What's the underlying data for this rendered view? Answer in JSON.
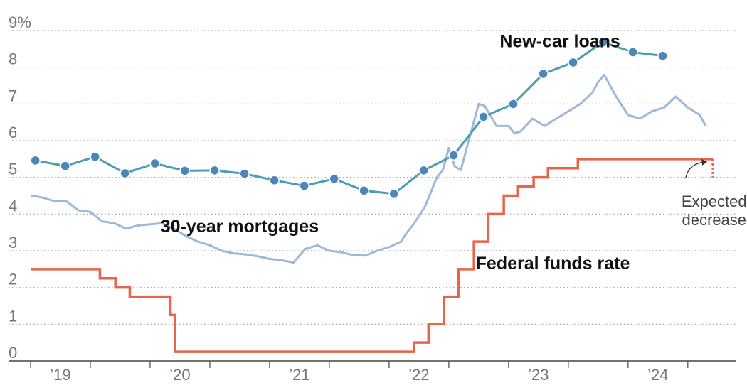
{
  "chart_data": {
    "type": "line",
    "ylim": [
      0,
      9
    ],
    "yticks": [
      0,
      1,
      2,
      3,
      4,
      5,
      6,
      7,
      8,
      9
    ],
    "ytick_labels": [
      "0",
      "1",
      "2",
      "3",
      "4",
      "5",
      "6",
      "7",
      "8",
      "9%"
    ],
    "xlim": [
      2019.0,
      2024.9
    ],
    "xticks": [
      2019.0,
      2019.5,
      2020.0,
      2020.5,
      2021.0,
      2021.5,
      2022.0,
      2022.5,
      2023.0,
      2023.5,
      2024.0,
      2024.5
    ],
    "xtick_labels": [
      {
        "x": 2019.25,
        "label": "’19"
      },
      {
        "x": 2020.25,
        "label": "’20"
      },
      {
        "x": 2021.25,
        "label": "’21"
      },
      {
        "x": 2022.25,
        "label": "’22"
      },
      {
        "x": 2023.25,
        "label": "’23"
      },
      {
        "x": 2024.25,
        "label": "’24"
      }
    ],
    "grid": "horizontal dotted",
    "series": [
      {
        "name": "New-car loans",
        "color": "#4a9db5",
        "markers": true,
        "x": [
          2019.04,
          2019.29,
          2019.54,
          2019.79,
          2020.04,
          2020.29,
          2020.54,
          2020.79,
          2021.04,
          2021.29,
          2021.54,
          2021.79,
          2022.04,
          2022.29,
          2022.54,
          2022.79,
          2023.04,
          2023.29,
          2023.54,
          2023.79,
          2024.04,
          2024.29
        ],
        "values": [
          5.46,
          5.31,
          5.56,
          5.11,
          5.38,
          5.18,
          5.19,
          5.1,
          4.92,
          4.77,
          4.96,
          4.64,
          4.55,
          5.19,
          5.6,
          6.65,
          7.0,
          7.82,
          8.13,
          8.68,
          8.41,
          8.31
        ]
      },
      {
        "name": "30-year mortgages",
        "color": "#9db8d8",
        "markers": false,
        "x": [
          2019.0,
          2019.1,
          2019.2,
          2019.3,
          2019.4,
          2019.5,
          2019.6,
          2019.7,
          2019.8,
          2019.9,
          2020.0,
          2020.1,
          2020.2,
          2020.3,
          2020.4,
          2020.5,
          2020.6,
          2020.7,
          2020.8,
          2020.9,
          2021.0,
          2021.1,
          2021.2,
          2021.3,
          2021.4,
          2021.5,
          2021.6,
          2021.7,
          2021.8,
          2021.9,
          2022.0,
          2022.1,
          2022.15,
          2022.2,
          2022.3,
          2022.4,
          2022.45,
          2022.5,
          2022.55,
          2022.6,
          2022.7,
          2022.75,
          2022.8,
          2022.9,
          2023.0,
          2023.05,
          2023.1,
          2023.2,
          2023.3,
          2023.4,
          2023.5,
          2023.6,
          2023.7,
          2023.75,
          2023.8,
          2023.85,
          2023.9,
          2024.0,
          2024.1,
          2024.2,
          2024.3,
          2024.4,
          2024.5,
          2024.6,
          2024.65
        ],
        "values": [
          4.51,
          4.45,
          4.35,
          4.35,
          4.1,
          4.06,
          3.8,
          3.75,
          3.6,
          3.69,
          3.72,
          3.75,
          3.6,
          3.4,
          3.25,
          3.15,
          3.0,
          2.93,
          2.9,
          2.85,
          2.78,
          2.74,
          2.68,
          3.05,
          3.15,
          3.0,
          2.96,
          2.88,
          2.87,
          3.0,
          3.1,
          3.25,
          3.5,
          3.7,
          4.2,
          5.0,
          5.2,
          5.8,
          5.3,
          5.2,
          6.4,
          7.0,
          6.95,
          6.4,
          6.4,
          6.2,
          6.25,
          6.6,
          6.4,
          6.6,
          6.8,
          7.0,
          7.3,
          7.6,
          7.79,
          7.5,
          7.2,
          6.7,
          6.6,
          6.8,
          6.9,
          7.2,
          6.9,
          6.7,
          6.4
        ]
      },
      {
        "name": "Federal funds rate",
        "color": "#e8644a",
        "markers": false,
        "step": true,
        "x": [
          2019.0,
          2019.58,
          2019.71,
          2019.83,
          2020.17,
          2020.21,
          2021.0,
          2022.0,
          2022.21,
          2022.33,
          2022.46,
          2022.58,
          2022.71,
          2022.83,
          2022.96,
          2023.08,
          2023.21,
          2023.33,
          2023.58,
          2024.0,
          2024.5,
          2024.71
        ],
        "values": [
          2.5,
          2.25,
          2.0,
          1.75,
          1.25,
          0.25,
          0.25,
          0.25,
          0.5,
          1.0,
          1.75,
          2.5,
          3.25,
          4.0,
          4.5,
          4.75,
          5.0,
          5.25,
          5.5,
          5.5,
          5.5,
          5.5
        ]
      }
    ],
    "projection": {
      "series": "Federal funds rate",
      "x": 2024.71,
      "from": 5.5,
      "to": 5.0,
      "style": "dotted"
    },
    "annotations": [
      {
        "text": "New-car loans",
        "x": 2023.43,
        "y": 8.55
      },
      {
        "text": "30-year mortgages",
        "x": 2020.75,
        "y": 3.5
      },
      {
        "text": "Federal funds rate",
        "x": 2023.37,
        "y": 2.5
      },
      {
        "text": "Expected",
        "x": 2024.72,
        "y": 4.2
      },
      {
        "text": "decrease",
        "x": 2024.72,
        "y": 3.7
      }
    ]
  }
}
